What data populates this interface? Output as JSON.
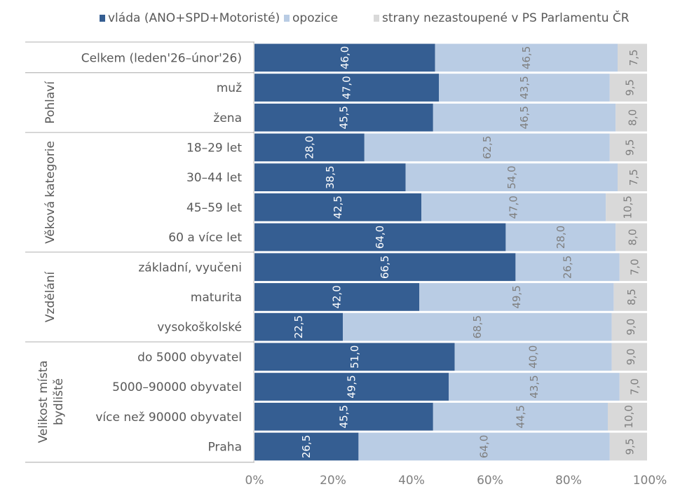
{
  "chart_data": {
    "type": "bar",
    "orientation": "horizontal",
    "stacked": "100%",
    "title": "",
    "xlabel": "",
    "ylabel": "",
    "xlim": [
      0,
      100
    ],
    "x_ticks": [
      "0%",
      "20%",
      "40%",
      "60%",
      "80%",
      "100%"
    ],
    "grid": false,
    "legend_position": "top",
    "colors": {
      "vlada": "#355E92",
      "opozice": "#B9CCE4",
      "ostatni": "#D9D9D9",
      "label_on_dark": "#FFFFFF",
      "label_on_light": "#7F7F7F",
      "axis_text": "#7F7F7F",
      "category_text": "#595959",
      "separator": "#BFBFBF"
    },
    "series": [
      {
        "key": "vlada",
        "name": "vláda (ANO+SPD+Motoristé)",
        "values": [
          46.0,
          47.0,
          45.5,
          28.0,
          38.5,
          42.5,
          64.0,
          66.5,
          42.0,
          22.5,
          51.0,
          49.5,
          45.5,
          26.5
        ],
        "labels": [
          "46,0",
          "47,0",
          "45,5",
          "28,0",
          "38,5",
          "42,5",
          "64,0",
          "66,5",
          "42,0",
          "22,5",
          "51,0",
          "49,5",
          "45,5",
          "26,5"
        ]
      },
      {
        "key": "opozice",
        "name": "opozice",
        "values": [
          46.5,
          43.5,
          46.5,
          62.5,
          54.0,
          47.0,
          28.0,
          26.5,
          49.5,
          68.5,
          40.0,
          43.5,
          44.5,
          64.0
        ],
        "labels": [
          "46,5",
          "43,5",
          "46,5",
          "62,5",
          "54,0",
          "47,0",
          "28,0",
          "26,5",
          "49,5",
          "68,5",
          "40,0",
          "43,5",
          "44,5",
          "64,0"
        ]
      },
      {
        "key": "ostatni",
        "name": "strany nezastoupené v PS Parlamentu ČR",
        "values": [
          7.5,
          9.5,
          8.0,
          9.5,
          7.5,
          10.5,
          8.0,
          7.0,
          8.5,
          9.0,
          9.0,
          7.0,
          10.0,
          9.5
        ],
        "labels": [
          "7,5",
          "9,5",
          "8,0",
          "9,5",
          "7,5",
          "10,5",
          "8,0",
          "7,0",
          "8,5",
          "9,0",
          "9,0",
          "7,0",
          "10,0",
          "9,5"
        ]
      }
    ],
    "categories": [
      "Celkem (leden'26–únor'26)",
      "muž",
      "žena",
      "18–29 let",
      "30–44 let",
      "45–59 let",
      "60 a více let",
      "základní, vyučeni",
      "maturita",
      "vysokoškolské",
      "do 5000 obyvatel",
      "5000–90000 obyvatel",
      "více než 90000 obyvatel",
      "Praha"
    ],
    "groups": [
      {
        "label": "",
        "lines": [],
        "count": 1
      },
      {
        "label": "Pohlaví",
        "lines": [
          "Pohlaví"
        ],
        "count": 2
      },
      {
        "label": "Věková kategorie",
        "lines": [
          "Věková kategorie"
        ],
        "count": 4
      },
      {
        "label": "Vzdělání",
        "lines": [
          "Vzdělání"
        ],
        "count": 3
      },
      {
        "label": "Velikost místa bydliště",
        "lines": [
          "Velikost místa",
          "bydliště"
        ],
        "count": 4
      }
    ]
  }
}
